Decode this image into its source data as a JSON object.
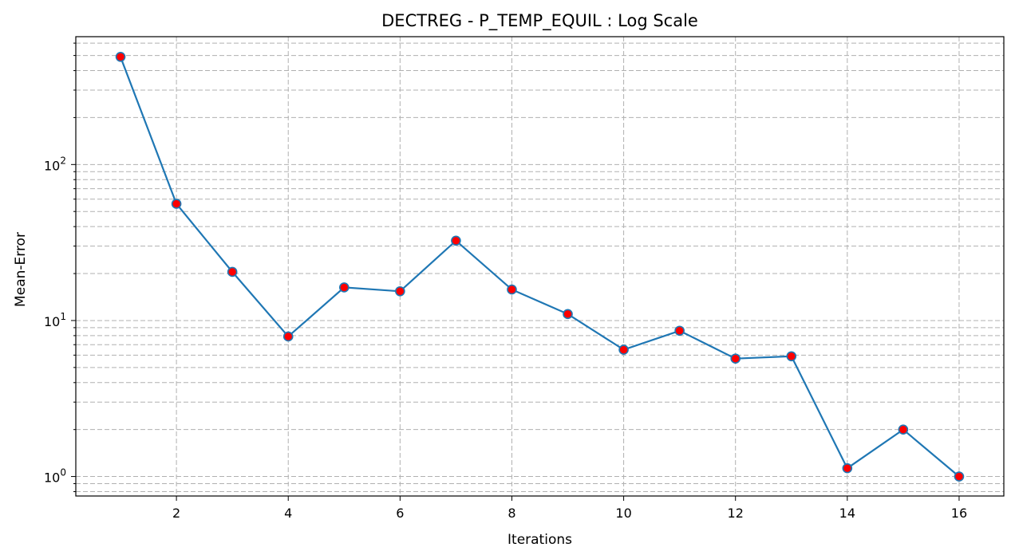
{
  "chart_data": {
    "type": "line",
    "title": "DECTREG - P_TEMP_EQUIL : Log Scale",
    "xlabel": "Iterations",
    "ylabel": "Mean-Error",
    "yscale": "log",
    "grid": true,
    "grid_style": "dashed",
    "xlim": [
      0.2,
      16.8
    ],
    "ylim": [
      0.75,
      660
    ],
    "x_ticks": [
      2,
      4,
      6,
      8,
      10,
      12,
      14,
      16
    ],
    "y_ticks": [
      {
        "value": 1,
        "base": "10",
        "exp": "0"
      },
      {
        "value": 10,
        "base": "10",
        "exp": "1"
      },
      {
        "value": 100,
        "base": "10",
        "exp": "2"
      }
    ],
    "series": [
      {
        "line_color": "#1f77b4",
        "marker_face": "#ff0000",
        "marker_edge": "#1f77b4",
        "x": [
          1,
          2,
          3,
          4,
          5,
          6,
          7,
          8,
          9,
          10,
          11,
          12,
          13,
          14,
          15,
          16
        ],
        "y": [
          490,
          56,
          20.5,
          7.9,
          16.3,
          15.4,
          32.5,
          15.8,
          11.0,
          6.5,
          8.6,
          5.7,
          5.9,
          1.13,
          2.0,
          1.0
        ]
      }
    ]
  }
}
